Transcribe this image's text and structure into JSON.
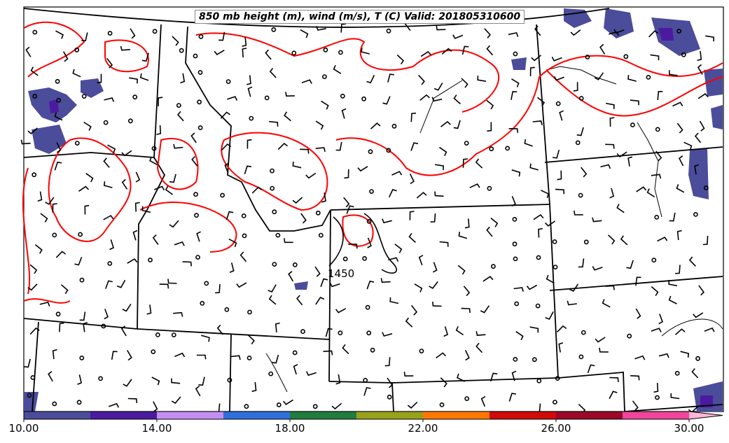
{
  "title": "850 mb height (m), wind (m/s), T (C) Valid: 201805310600",
  "contour_label": "1450",
  "colorbar": {
    "ticks": [
      "10.00",
      "14.00",
      "18.00",
      "22.00",
      "26.00",
      "30.00"
    ],
    "colors": [
      "#4b4d9a",
      "#4c1aa0",
      "#c48ef0",
      "#2e6fdc",
      "#1f7d3e",
      "#97a11a",
      "#ff7700",
      "#d10a0a",
      "#9c0828",
      "#f04598",
      "#ffb6d9"
    ]
  },
  "colors": {
    "temperature_contour": "#ff0000",
    "height_contour": "#000000",
    "borders": "#000000",
    "fill_low": "#4b4d9a",
    "fill_mid": "#4c1aa0"
  }
}
